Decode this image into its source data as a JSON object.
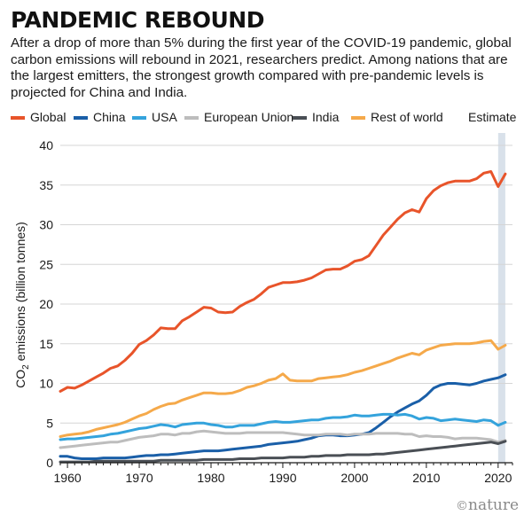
{
  "header": {
    "title": "PANDEMIC REBOUND",
    "subtitle": "After a drop of more than 5% during the first year of the COVID-19 pandemic, global carbon emissions will rebound in 2021, researchers predict. Among nations that are the largest emitters, the strongest growth compared with pre-pandemic levels is projected for China and India."
  },
  "brand": {
    "symbol": "©",
    "name": "nature"
  },
  "chart_data": {
    "type": "line",
    "title": "PANDEMIC REBOUND",
    "ylabel_prefix": "CO",
    "ylabel_sub": "2",
    "ylabel_suffix": " emissions (billion tonnes)",
    "xlabel": "",
    "xlim": [
      1959,
      2022
    ],
    "ylim": [
      0,
      40
    ],
    "x_ticks": [
      1960,
      1970,
      1980,
      1990,
      2000,
      2010,
      2020
    ],
    "y_ticks": [
      0,
      5,
      10,
      15,
      20,
      25,
      30,
      35,
      40
    ],
    "grid": "horizontal",
    "legend_position": "top",
    "estimate": {
      "label": "Estimate",
      "from": 2020,
      "to": 2021
    },
    "x": [
      1959,
      1960,
      1961,
      1962,
      1963,
      1964,
      1965,
      1966,
      1967,
      1968,
      1969,
      1970,
      1971,
      1972,
      1973,
      1974,
      1975,
      1976,
      1977,
      1978,
      1979,
      1980,
      1981,
      1982,
      1983,
      1984,
      1985,
      1986,
      1987,
      1988,
      1989,
      1990,
      1991,
      1992,
      1993,
      1994,
      1995,
      1996,
      1997,
      1998,
      1999,
      2000,
      2001,
      2002,
      2003,
      2004,
      2005,
      2006,
      2007,
      2008,
      2009,
      2010,
      2011,
      2012,
      2013,
      2014,
      2015,
      2016,
      2017,
      2018,
      2019,
      2020,
      2021
    ],
    "series": [
      {
        "name": "Global",
        "color": "#e8542a",
        "values": [
          9.0,
          9.5,
          9.4,
          9.8,
          10.3,
          10.8,
          11.3,
          11.9,
          12.2,
          12.9,
          13.8,
          14.9,
          15.4,
          16.1,
          17.0,
          16.9,
          16.9,
          17.9,
          18.4,
          19.0,
          19.6,
          19.5,
          19.0,
          18.9,
          19.0,
          19.7,
          20.2,
          20.6,
          21.3,
          22.1,
          22.4,
          22.7,
          22.7,
          22.8,
          23.0,
          23.3,
          23.8,
          24.3,
          24.4,
          24.4,
          24.8,
          25.4,
          25.6,
          26.1,
          27.4,
          28.7,
          29.7,
          30.7,
          31.5,
          31.9,
          31.6,
          33.3,
          34.3,
          34.9,
          35.3,
          35.5,
          35.5,
          35.5,
          35.8,
          36.5,
          36.7,
          34.8,
          36.4
        ]
      },
      {
        "name": "China",
        "color": "#1a5fa8",
        "values": [
          0.8,
          0.8,
          0.6,
          0.5,
          0.5,
          0.5,
          0.6,
          0.6,
          0.6,
          0.6,
          0.7,
          0.8,
          0.9,
          0.9,
          1.0,
          1.0,
          1.1,
          1.2,
          1.3,
          1.4,
          1.5,
          1.5,
          1.5,
          1.6,
          1.7,
          1.8,
          1.9,
          2.0,
          2.1,
          2.3,
          2.4,
          2.5,
          2.6,
          2.7,
          2.9,
          3.1,
          3.4,
          3.5,
          3.5,
          3.4,
          3.4,
          3.5,
          3.6,
          3.8,
          4.4,
          5.1,
          5.8,
          6.4,
          6.9,
          7.4,
          7.8,
          8.5,
          9.4,
          9.8,
          10.0,
          10.0,
          9.9,
          9.8,
          10.0,
          10.3,
          10.5,
          10.7,
          11.1
        ]
      },
      {
        "name": "USA",
        "color": "#34a3dc",
        "values": [
          2.9,
          3.0,
          3.0,
          3.1,
          3.2,
          3.3,
          3.4,
          3.6,
          3.7,
          3.9,
          4.1,
          4.3,
          4.4,
          4.6,
          4.8,
          4.7,
          4.5,
          4.8,
          4.9,
          5.0,
          5.0,
          4.8,
          4.7,
          4.5,
          4.5,
          4.7,
          4.7,
          4.7,
          4.9,
          5.1,
          5.2,
          5.1,
          5.1,
          5.2,
          5.3,
          5.4,
          5.4,
          5.6,
          5.7,
          5.7,
          5.8,
          6.0,
          5.9,
          5.9,
          6.0,
          6.1,
          6.1,
          6.0,
          6.1,
          5.9,
          5.5,
          5.7,
          5.6,
          5.3,
          5.4,
          5.5,
          5.4,
          5.3,
          5.2,
          5.4,
          5.3,
          4.7,
          5.1
        ]
      },
      {
        "name": "European Union",
        "color": "#bdbdbd",
        "values": [
          1.9,
          2.0,
          2.1,
          2.2,
          2.3,
          2.4,
          2.5,
          2.6,
          2.6,
          2.8,
          3.0,
          3.2,
          3.3,
          3.4,
          3.6,
          3.6,
          3.5,
          3.7,
          3.7,
          3.9,
          4.0,
          3.9,
          3.8,
          3.7,
          3.7,
          3.7,
          3.8,
          3.8,
          3.8,
          3.8,
          3.8,
          3.8,
          3.7,
          3.6,
          3.5,
          3.5,
          3.5,
          3.6,
          3.6,
          3.6,
          3.5,
          3.6,
          3.6,
          3.6,
          3.7,
          3.7,
          3.7,
          3.7,
          3.6,
          3.6,
          3.3,
          3.4,
          3.3,
          3.3,
          3.2,
          3.0,
          3.1,
          3.1,
          3.1,
          3.0,
          2.9,
          2.6,
          2.8
        ]
      },
      {
        "name": "India",
        "color": "#4a4f55",
        "values": [
          0.1,
          0.1,
          0.1,
          0.1,
          0.1,
          0.2,
          0.2,
          0.2,
          0.2,
          0.2,
          0.2,
          0.2,
          0.2,
          0.2,
          0.3,
          0.3,
          0.3,
          0.3,
          0.3,
          0.3,
          0.4,
          0.4,
          0.4,
          0.4,
          0.4,
          0.5,
          0.5,
          0.5,
          0.6,
          0.6,
          0.6,
          0.6,
          0.7,
          0.7,
          0.7,
          0.8,
          0.8,
          0.9,
          0.9,
          0.9,
          1.0,
          1.0,
          1.0,
          1.0,
          1.1,
          1.1,
          1.2,
          1.3,
          1.4,
          1.5,
          1.6,
          1.7,
          1.8,
          1.9,
          2.0,
          2.1,
          2.2,
          2.3,
          2.4,
          2.5,
          2.6,
          2.4,
          2.7
        ]
      },
      {
        "name": "Rest of world",
        "color": "#f5a94a",
        "values": [
          3.3,
          3.5,
          3.6,
          3.7,
          3.9,
          4.2,
          4.4,
          4.6,
          4.8,
          5.1,
          5.5,
          5.9,
          6.2,
          6.7,
          7.1,
          7.4,
          7.5,
          7.9,
          8.2,
          8.5,
          8.8,
          8.8,
          8.7,
          8.7,
          8.8,
          9.1,
          9.5,
          9.7,
          10.0,
          10.4,
          10.6,
          11.2,
          10.4,
          10.3,
          10.3,
          10.3,
          10.6,
          10.7,
          10.8,
          10.9,
          11.1,
          11.4,
          11.6,
          11.9,
          12.2,
          12.5,
          12.8,
          13.2,
          13.5,
          13.8,
          13.6,
          14.2,
          14.5,
          14.8,
          14.9,
          15.0,
          15.0,
          15.0,
          15.1,
          15.3,
          15.4,
          14.3,
          14.8
        ]
      }
    ]
  }
}
